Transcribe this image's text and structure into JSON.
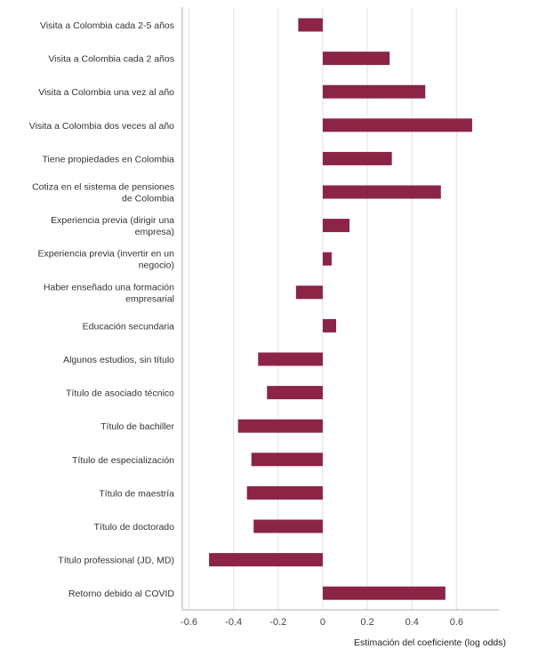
{
  "chart_data": {
    "type": "bar",
    "orientation": "horizontal",
    "categories": [
      [
        "Visita a Colombia cada 2-5 años"
      ],
      [
        "Visita a Colombia cada 2 años"
      ],
      [
        "Visita a Colombia una vez al año"
      ],
      [
        "Visita a Colombia dos veces al año"
      ],
      [
        "Tiene propiedades en Colombia"
      ],
      [
        "Cotiza en el sistema de pensiones",
        "de Colombia"
      ],
      [
        "Experiencia previa (dirigir una",
        "empresa)"
      ],
      [
        "Experiencia previa (invertir en un",
        "negocio)"
      ],
      [
        "Haber enseñado una formación",
        "empresarial"
      ],
      [
        "Educación secundaria"
      ],
      [
        "Algunos estudios, sin título"
      ],
      [
        "Título de asociado técnico"
      ],
      [
        "Título de bachiller"
      ],
      [
        "Título de especialización"
      ],
      [
        "Título de maestría"
      ],
      [
        "Título de doctorado"
      ],
      [
        "Título professional (JD, MD)"
      ],
      [
        "Retorno debido al COVID"
      ]
    ],
    "values": [
      -0.11,
      0.3,
      0.46,
      0.67,
      0.31,
      0.53,
      0.12,
      0.04,
      -0.12,
      0.06,
      -0.29,
      -0.25,
      -0.38,
      -0.32,
      -0.34,
      -0.31,
      -0.51,
      0.55
    ],
    "xlabel": "Estimación del coeficiente (log odds)",
    "ylabel": "",
    "xlim": [
      -0.63,
      0.79
    ],
    "xticks": [
      -0.6,
      -0.4,
      -0.2,
      0,
      0.2,
      0.4,
      0.6
    ],
    "xtick_labels": [
      "-0.6",
      "-0.4",
      "-0.2",
      "0",
      "0.2",
      "0.4",
      "0.6"
    ],
    "grid": "vertical",
    "bar_color": "#8b2445",
    "grid_color": "#e6e6e6"
  }
}
